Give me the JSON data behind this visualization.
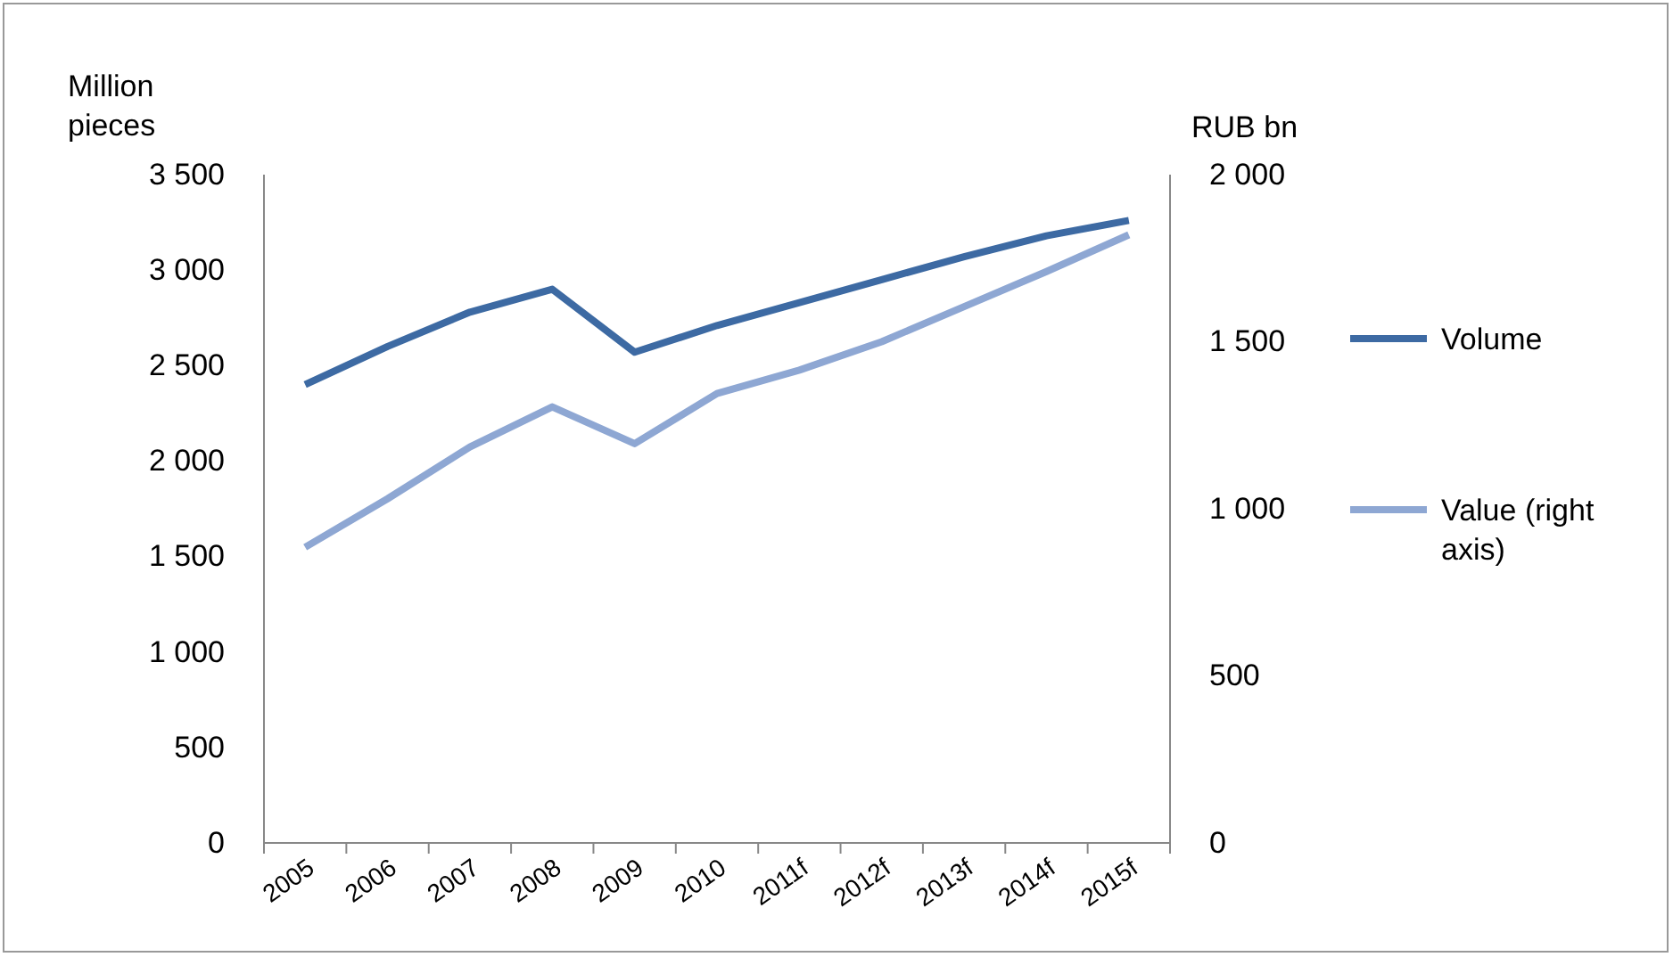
{
  "chart_data": {
    "type": "line",
    "ylabel": "Million pieces",
    "y2label": "RUB bn",
    "categories": [
      "2005",
      "2006",
      "2007",
      "2008",
      "2009",
      "2010",
      "2011f",
      "2012f",
      "2013f",
      "2014f",
      "2015f"
    ],
    "series": [
      {
        "name": "Volume",
        "color": "#3d6aa3",
        "values": [
          2400,
          2600,
          2780,
          2900,
          2570,
          2710,
          2830,
          2950,
          3070,
          3180,
          3260
        ]
      },
      {
        "name": "Value (right axis)",
        "color": "#8ea7d3",
        "axis": "y2",
        "values": [
          885,
          1030,
          1185,
          1305,
          1195,
          1345,
          1415,
          1500,
          1605,
          1710,
          1820
        ]
      }
    ],
    "ylim": [
      0,
      3500
    ],
    "yticks": [
      0,
      500,
      {
        "value": 1000,
        "label": "1 000"
      },
      {
        "value": 1500,
        "label": "1 500"
      },
      {
        "value": 2000,
        "label": "2 000"
      },
      {
        "value": 2500,
        "label": "2 500"
      },
      {
        "value": 3000,
        "label": "3 000"
      },
      {
        "value": 3500,
        "label": "3 500"
      }
    ],
    "y2lim": [
      0,
      2000
    ],
    "y2ticks": [
      0,
      500,
      {
        "value": 1000,
        "label": "1 000"
      },
      {
        "value": 1500,
        "label": "1 500"
      },
      {
        "value": 2000,
        "label": "2 000"
      }
    ],
    "grid": false,
    "legend": "right",
    "marker": "none",
    "line_style": "solid"
  }
}
